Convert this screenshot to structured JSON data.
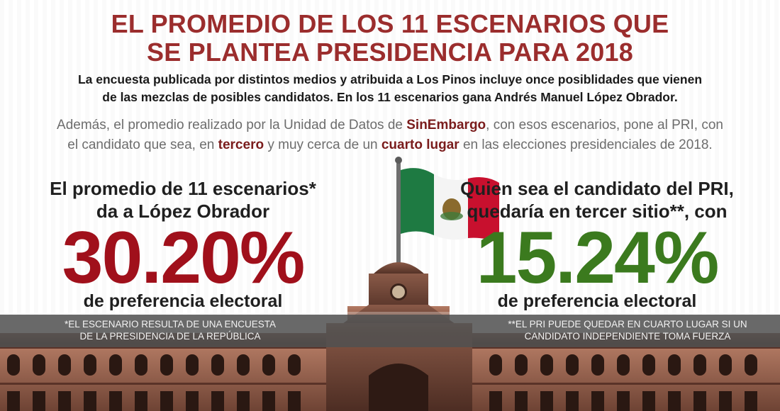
{
  "title_line1": "EL PROMEDIO DE LOS 11 ESCENARIOS QUE",
  "title_line2": "SE PLANTEA PRESIDENCIA PARA 2018",
  "lead_line1": "La encuesta publicada por distintos medios y atribuida a Los Pinos incluye once posiblidades que vienen",
  "lead_line2": "de las mezclas de posibles candidatos. En los 11 escenarios gana Andrés Manuel López Obrador.",
  "note": {
    "part1": "Además, el promedio realizado por la Unidad de Datos de ",
    "brand": "SinEmbargo",
    "part2": ", con esos escenarios, pone al PRI, con",
    "part3": "el candidato que sea, en ",
    "emph1": "tercero",
    "part4": " y muy cerca de un ",
    "emph2": "cuarto lugar",
    "part5": " en las elecciones presidenciales de 2018."
  },
  "left_stat": {
    "head_line1": "El promedio de 11 escenarios*",
    "head_line2": "da a López Obrador",
    "value": "30.20%",
    "sub": "de preferencia electoral"
  },
  "right_stat": {
    "head_line1": "Quien sea el candidato del PRI,",
    "head_line2": "quedaría en tercer sitio**, con",
    "value": "15.24%",
    "sub": "de preferencia electoral"
  },
  "footnote_left_line1": "*EL ESCENARIO RESULTA DE UNA ENCUESTA",
  "footnote_left_line2": "DE LA PRESIDENCIA DE LA REPÚBLICA",
  "footnote_right_line1": "**EL PRI PUEDE QUEDAR EN CUARTO LUGAR SI UN",
  "footnote_right_line2": "CANDIDATO INDEPENDIENTE TOMA FUERZA",
  "colors": {
    "title": "#9b2d2d",
    "left_value": "#a0101b",
    "right_value": "#3b7a1e",
    "flag_green": "#1e7a42",
    "flag_white": "#f4f4f4",
    "flag_red": "#c8102e"
  },
  "icons": [
    "mexico-flag-icon",
    "palace-building-illustration"
  ]
}
